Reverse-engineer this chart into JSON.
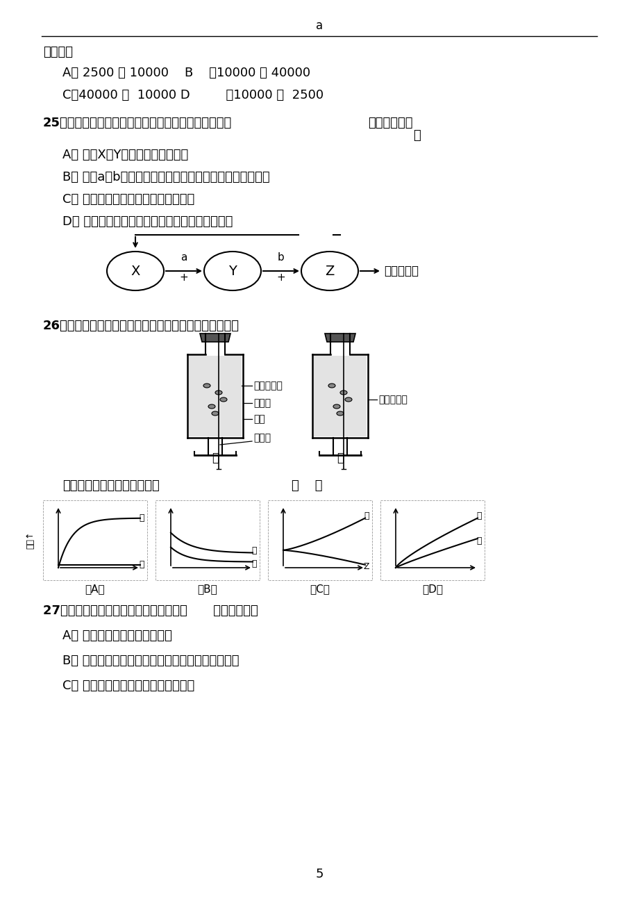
{
  "bg_color": "#ffffff",
  "page_number": "5",
  "top_label": "a",
  "line1_text": "数各为（",
  "optA_text": "A． 2500 和 10000    B    ．10000 和 40000",
  "optC_text": "C．40000 和  10000 D         ．10000 和  2500",
  "q25_text": "25、下图是甲状腺活动的调节示意图，对该图的理解，",
  "q25_text_right": "不正确的是（",
  "q25_text2": "）",
  "q25A": "A． 图中X与Y分别是下丘脑和垂体",
  "q25B": "B． 图中a与b分别是促甲状腺激素释放激素和促甲状腺激素",
  "q25C": "C． 甲状腺活动只受垂体促激素的调节",
  "q25D": "D． 血液中的甲状腺激素含量起着反馈调节的作用",
  "q26_text": "26、甲、乙为研究豌豆种子萌发过程中温度变化示意图。",
  "apparatus_label1": "萌发的豌豆",
  "apparatus_label2": "保温瓶",
  "apparatus_label3": "棉绒",
  "apparatus_label4": "温度计",
  "apparatus_jia": "甲",
  "apparatus_yi": "乙",
  "apparatus_right_label": "的豌豆种子",
  "q26_question": "能正确表示上述实验结果的是",
  "q26_bracket": "（    ）",
  "yaxis_label": "温差↑",
  "q27_text": "27、下列有关突触结构和功能的叙述中，      错误的是（）",
  "q27A": "A． 突触前膜与后膜之间有间隙",
  "q27B": "B． 兴奋由电信号转变成化学信号，再转变成电信号",
  "q27C": "C． 兴奋在突触处只能由前膜传向后膜"
}
